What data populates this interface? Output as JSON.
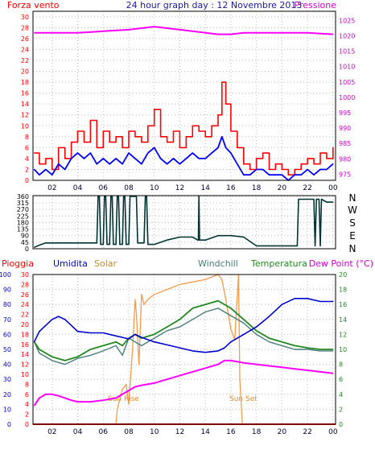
{
  "header": {
    "left": "Forza vento",
    "title": "24 hour graph day : 12 Novembre 2013",
    "right": "Pressione"
  },
  "colors": {
    "wind_gust": "#ff0000",
    "wind_avg": "#0000ff",
    "pressure": "#ff00ff",
    "direction": "#003333",
    "humidity": "#0000cc",
    "solar": "#f59a4a",
    "windchill": "#4a7a7a",
    "temperature": "#228822",
    "dewpoint": "#ff00ff",
    "rain": "#ff0000",
    "grid": "#bbbbbb",
    "frame": "#000000"
  },
  "compass": {
    "labels": [
      "N",
      "W",
      "S",
      "E",
      "N"
    ]
  },
  "legend_bottom": {
    "rain": "Pioggia",
    "humidity": "Umidita",
    "solar": "Solar",
    "windchill": "Windchill",
    "temperature": "Temperatura",
    "dewpoint": "Dew Point (°C)"
  },
  "annotations": {
    "sunrise": "Sun Rise",
    "sunset": "Sun Set"
  },
  "chart_data": [
    {
      "type": "line",
      "x_ticks": [
        "02",
        "04",
        "06",
        "08",
        "10",
        "12",
        "14",
        "16",
        "18",
        "20",
        "22",
        "00"
      ],
      "y_left_ticks": [
        0,
        2,
        4,
        6,
        8,
        10,
        12,
        14,
        16,
        18,
        20,
        22,
        24,
        26,
        28,
        30
      ],
      "y_right_ticks": [
        975,
        980,
        985,
        990,
        995,
        1000,
        1005,
        1010,
        1015,
        1020,
        1025
      ],
      "ylim_left": [
        0,
        31
      ],
      "ylim_right": [
        973,
        1028
      ],
      "xlim": [
        0.5,
        24.2
      ],
      "series": [
        {
          "key": "gust",
          "x": [
            0.6,
            1.0,
            1.5,
            2.0,
            2.5,
            3.0,
            3.5,
            4.0,
            4.5,
            5.0,
            5.5,
            6.0,
            6.5,
            7.0,
            7.5,
            8.0,
            8.5,
            9.0,
            9.5,
            10.0,
            10.5,
            11.0,
            11.5,
            12.0,
            12.5,
            13.0,
            13.5,
            14.0,
            14.5,
            15.0,
            15.3,
            15.6,
            16.0,
            16.5,
            17.0,
            17.5,
            18.0,
            18.5,
            19.0,
            19.5,
            20.0,
            20.5,
            21.0,
            21.5,
            22.0,
            22.5,
            23.0,
            23.5,
            24.0
          ],
          "values": [
            5,
            3,
            4,
            2,
            6,
            4,
            7,
            9,
            7,
            11,
            6,
            9,
            7,
            8,
            6,
            9,
            8,
            7,
            10,
            13,
            8,
            7,
            9,
            6,
            8,
            10,
            9,
            8,
            10,
            12,
            18,
            14,
            9,
            6,
            3,
            2,
            4,
            5,
            2,
            3,
            2,
            1,
            2,
            3,
            4,
            3,
            5,
            4,
            6
          ]
        },
        {
          "key": "avg",
          "x": [
            0.6,
            1.0,
            1.5,
            2.0,
            2.5,
            3.0,
            3.5,
            4.0,
            4.5,
            5.0,
            5.5,
            6.0,
            6.5,
            7.0,
            7.5,
            8.0,
            8.5,
            9.0,
            9.5,
            10.0,
            10.5,
            11.0,
            11.5,
            12.0,
            12.5,
            13.0,
            13.5,
            14.0,
            14.5,
            15.0,
            15.3,
            15.6,
            16.0,
            16.5,
            17.0,
            17.5,
            18.0,
            18.5,
            19.0,
            19.5,
            20.0,
            20.5,
            21.0,
            21.5,
            22.0,
            22.5,
            23.0,
            23.5,
            24.0
          ],
          "values": [
            2,
            1,
            2,
            1,
            3,
            2,
            4,
            5,
            4,
            5,
            3,
            4,
            3,
            4,
            3,
            5,
            4,
            3,
            5,
            6,
            4,
            3,
            4,
            3,
            4,
            5,
            4,
            4,
            5,
            6,
            8,
            6,
            5,
            3,
            1,
            1,
            2,
            2,
            1,
            1,
            1,
            0,
            1,
            1,
            2,
            1,
            2,
            2,
            3
          ]
        },
        {
          "key": "pressure",
          "x": [
            0.6,
            2,
            4,
            6,
            8,
            9,
            10,
            11,
            12,
            13,
            14,
            15,
            16,
            17,
            18,
            20,
            22,
            24
          ],
          "values": [
            1021,
            1021,
            1021,
            1021.5,
            1022,
            1022.5,
            1023,
            1022.5,
            1022,
            1021.5,
            1021,
            1020.5,
            1020.5,
            1021,
            1021,
            1021,
            1021,
            1020.5
          ]
        }
      ]
    },
    {
      "type": "line",
      "y_left_ticks": [
        0,
        45,
        90,
        135,
        180,
        225,
        270,
        315,
        360
      ],
      "ylim": [
        0,
        365
      ],
      "xlim": [
        0.5,
        24.2
      ],
      "series": [
        {
          "key": "direction",
          "x": [
            0.6,
            1.0,
            1.5,
            2.0,
            3.0,
            4.0,
            5.0,
            5.5,
            5.6,
            5.7,
            5.8,
            6.0,
            6.1,
            6.2,
            6.3,
            6.5,
            6.6,
            6.7,
            6.8,
            7.0,
            7.1,
            7.2,
            7.3,
            7.5,
            7.6,
            7.7,
            7.8,
            8.0,
            8.1,
            8.2,
            8.3,
            8.6,
            8.7,
            8.8,
            8.9,
            9.2,
            9.3,
            9.4,
            9.5,
            10.0,
            11.0,
            12.0,
            13.0,
            13.4,
            13.45,
            13.5,
            13.55,
            14.0,
            15.0,
            16.0,
            17.0,
            18.0,
            19.0,
            20.0,
            21.0,
            21.2,
            21.3,
            21.4,
            22.0,
            22.5,
            22.6,
            22.7,
            22.9,
            23.0,
            23.1,
            23.5,
            24.0
          ],
          "values": [
            10,
            25,
            40,
            40,
            40,
            40,
            40,
            40,
            360,
            360,
            30,
            30,
            360,
            360,
            30,
            30,
            360,
            360,
            30,
            30,
            360,
            360,
            30,
            30,
            360,
            360,
            30,
            30,
            360,
            360,
            360,
            360,
            40,
            40,
            40,
            40,
            360,
            360,
            30,
            30,
            60,
            80,
            80,
            60,
            60,
            360,
            60,
            60,
            90,
            90,
            80,
            20,
            20,
            20,
            20,
            20,
            340,
            340,
            340,
            340,
            20,
            340,
            340,
            20,
            340,
            320,
            320
          ]
        }
      ]
    },
    {
      "type": "line",
      "y_left_ticks": [
        0,
        10,
        20,
        30,
        40,
        50,
        60,
        70,
        80,
        90,
        100
      ],
      "y_left2_ticks": [
        0,
        2,
        4,
        6,
        8,
        10,
        12,
        14,
        16,
        18,
        20,
        22,
        24,
        26,
        28,
        30
      ],
      "y_right_ticks": [
        0,
        2,
        4,
        6,
        8,
        10,
        12,
        14,
        16,
        18,
        20
      ],
      "ylim_left": [
        0,
        100
      ],
      "ylim_left2": [
        0,
        30
      ],
      "ylim_right": [
        0,
        20
      ],
      "xlim": [
        0.5,
        24.2
      ],
      "series": [
        {
          "key": "humidity",
          "x": [
            0.6,
            1.0,
            1.5,
            2.0,
            2.5,
            3.0,
            3.5,
            4.0,
            5.0,
            6.0,
            7.0,
            7.5,
            8.0,
            8.5,
            9.0,
            10.0,
            11.0,
            12.0,
            13.0,
            14.0,
            15.0,
            15.5,
            16.0,
            17.0,
            18.0,
            19.0,
            20.0,
            21.0,
            22.0,
            23.0,
            24.0
          ],
          "values": [
            55,
            62,
            66,
            70,
            72,
            70,
            66,
            62,
            61,
            61,
            59,
            58,
            57,
            60,
            58,
            55,
            53,
            51,
            49,
            48,
            49,
            51,
            55,
            60,
            65,
            72,
            80,
            84,
            84,
            82,
            82
          ]
        },
        {
          "key": "solar",
          "x": [
            0.5,
            7.0,
            7.1,
            7.5,
            7.8,
            8.0,
            8.3,
            8.5,
            8.6,
            8.8,
            9.0,
            9.2,
            9.5,
            10.0,
            11.0,
            12.0,
            13.0,
            14.0,
            15.0,
            15.3,
            15.6,
            16.0,
            16.3,
            16.6,
            16.7,
            16.9,
            17.0,
            18.0,
            20.0,
            24.2
          ],
          "values": [
            0,
            0,
            3,
            7,
            8,
            4,
            15,
            25,
            22,
            12,
            26,
            24,
            25,
            26,
            27,
            28,
            28.5,
            29,
            30,
            29,
            25,
            19,
            17,
            30,
            9,
            0,
            0,
            0,
            0,
            0
          ]
        },
        {
          "key": "windchill",
          "x": [
            0.6,
            1.0,
            2.0,
            3.0,
            4.0,
            5.0,
            6.0,
            7.0,
            7.5,
            8.0,
            8.5,
            9.0,
            10.0,
            11.0,
            12.0,
            13.0,
            14.0,
            15.0,
            16.0,
            17.0,
            18.0,
            19.0,
            20.0,
            21.0,
            22.0,
            23.0,
            24.0
          ],
          "values": [
            11,
            9.5,
            8.5,
            8,
            8.8,
            9.2,
            9.8,
            10.5,
            9.2,
            11.5,
            11,
            10.5,
            11.5,
            12.5,
            13,
            14,
            15,
            15.5,
            14.5,
            13.5,
            12,
            11,
            10.5,
            10,
            10,
            9.8,
            9.8
          ]
        },
        {
          "key": "temperature",
          "x": [
            0.6,
            1.0,
            2.0,
            3.0,
            4.0,
            5.0,
            6.0,
            7.0,
            7.5,
            8.0,
            8.5,
            9.0,
            10.0,
            11.0,
            12.0,
            13.0,
            14.0,
            15.0,
            16.0,
            17.0,
            18.0,
            19.0,
            20.0,
            21.0,
            22.0,
            23.0,
            24.0
          ],
          "values": [
            11,
            10,
            9,
            8.5,
            9,
            10,
            10.5,
            11,
            10.5,
            11.5,
            12,
            11.5,
            12,
            13,
            14,
            15.5,
            16,
            16.5,
            15.5,
            14,
            12.5,
            11.5,
            11,
            10.5,
            10.2,
            10,
            10
          ]
        },
        {
          "key": "dewpoint",
          "x": [
            0.6,
            1.0,
            1.5,
            2.0,
            2.5,
            3.0,
            3.5,
            4.0,
            5.0,
            6.0,
            7.0,
            7.5,
            8.0,
            8.5,
            9.0,
            10.0,
            11.0,
            12.0,
            13.0,
            14.0,
            15.0,
            15.5,
            16.0,
            17.0,
            18.0,
            19.0,
            20.0,
            21.0,
            22.0,
            23.0,
            24.0
          ],
          "values": [
            2.5,
            3.5,
            4,
            4,
            3.8,
            3.5,
            3.2,
            3,
            3,
            3.2,
            3.5,
            4,
            4.5,
            5,
            5.2,
            5.5,
            6,
            6.5,
            7,
            7.5,
            8,
            8.5,
            8.5,
            8.2,
            8,
            7.8,
            7.6,
            7.4,
            7.2,
            7,
            6.8
          ]
        },
        {
          "key": "rain",
          "x": [
            0.5,
            24.2
          ],
          "values": [
            0,
            0
          ]
        }
      ]
    }
  ]
}
